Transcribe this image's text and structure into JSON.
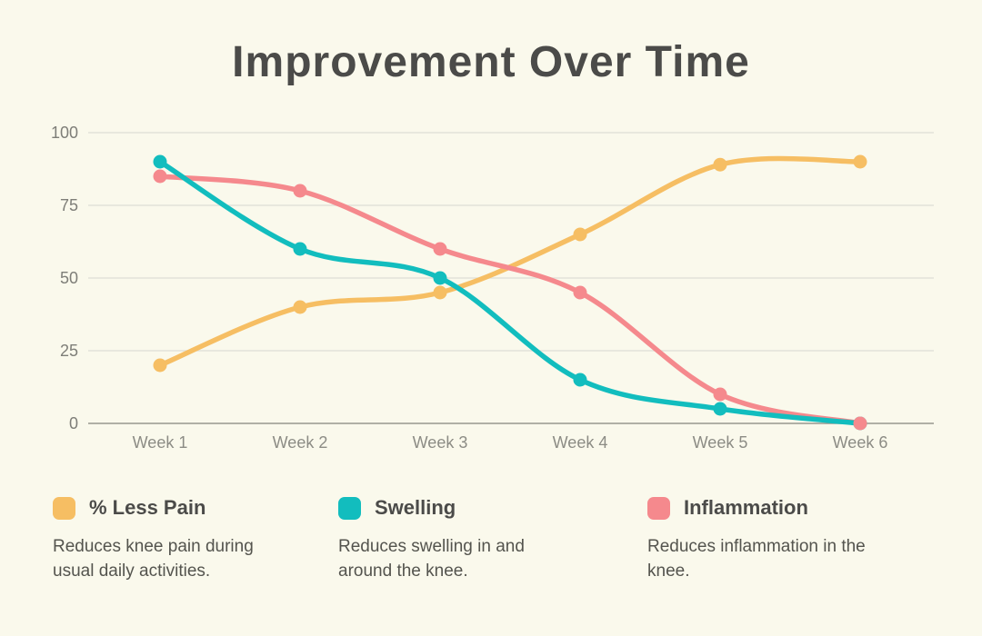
{
  "title": "Improvement Over Time",
  "colors": {
    "background": "#FAF9EC",
    "title_text": "#4B4B49",
    "gridline": "#E2E2DA",
    "zero_axis": "#97978F",
    "y_tick_text": "#7E7E78",
    "x_tick_text": "#8C8C85",
    "legend_label_text": "#4B4B49",
    "legend_desc_text": "#54544E"
  },
  "chart_data": {
    "type": "line",
    "title": "Improvement Over Time",
    "x_categories": [
      "Week 1",
      "Week 2",
      "Week 3",
      "Week 4",
      "Week 5",
      "Week 6"
    ],
    "y_tick_labels_top_to_bottom": [
      "100",
      "75",
      "50",
      "25",
      "0"
    ],
    "ylim": [
      0,
      100
    ],
    "grid": "horizontal",
    "legend_position": "bottom",
    "line_style": "smooth",
    "series": [
      {
        "name": "% Less Pain",
        "color": "#F6BE63",
        "values": [
          20,
          40,
          45,
          65,
          89,
          90
        ],
        "desc_lines": [
          "Reduces knee pain during",
          "usual daily activities."
        ]
      },
      {
        "name": "Swelling",
        "color": "#12BDBE",
        "values": [
          90,
          60,
          50,
          15,
          5,
          0
        ],
        "desc_lines": [
          "Reduces swelling in and",
          "around the knee."
        ]
      },
      {
        "name": "Inflammation",
        "color": "#F5898D",
        "values": [
          85,
          80,
          60,
          45,
          10,
          0
        ],
        "desc_lines": [
          "Reduces inflammation in the",
          "knee."
        ]
      }
    ]
  }
}
